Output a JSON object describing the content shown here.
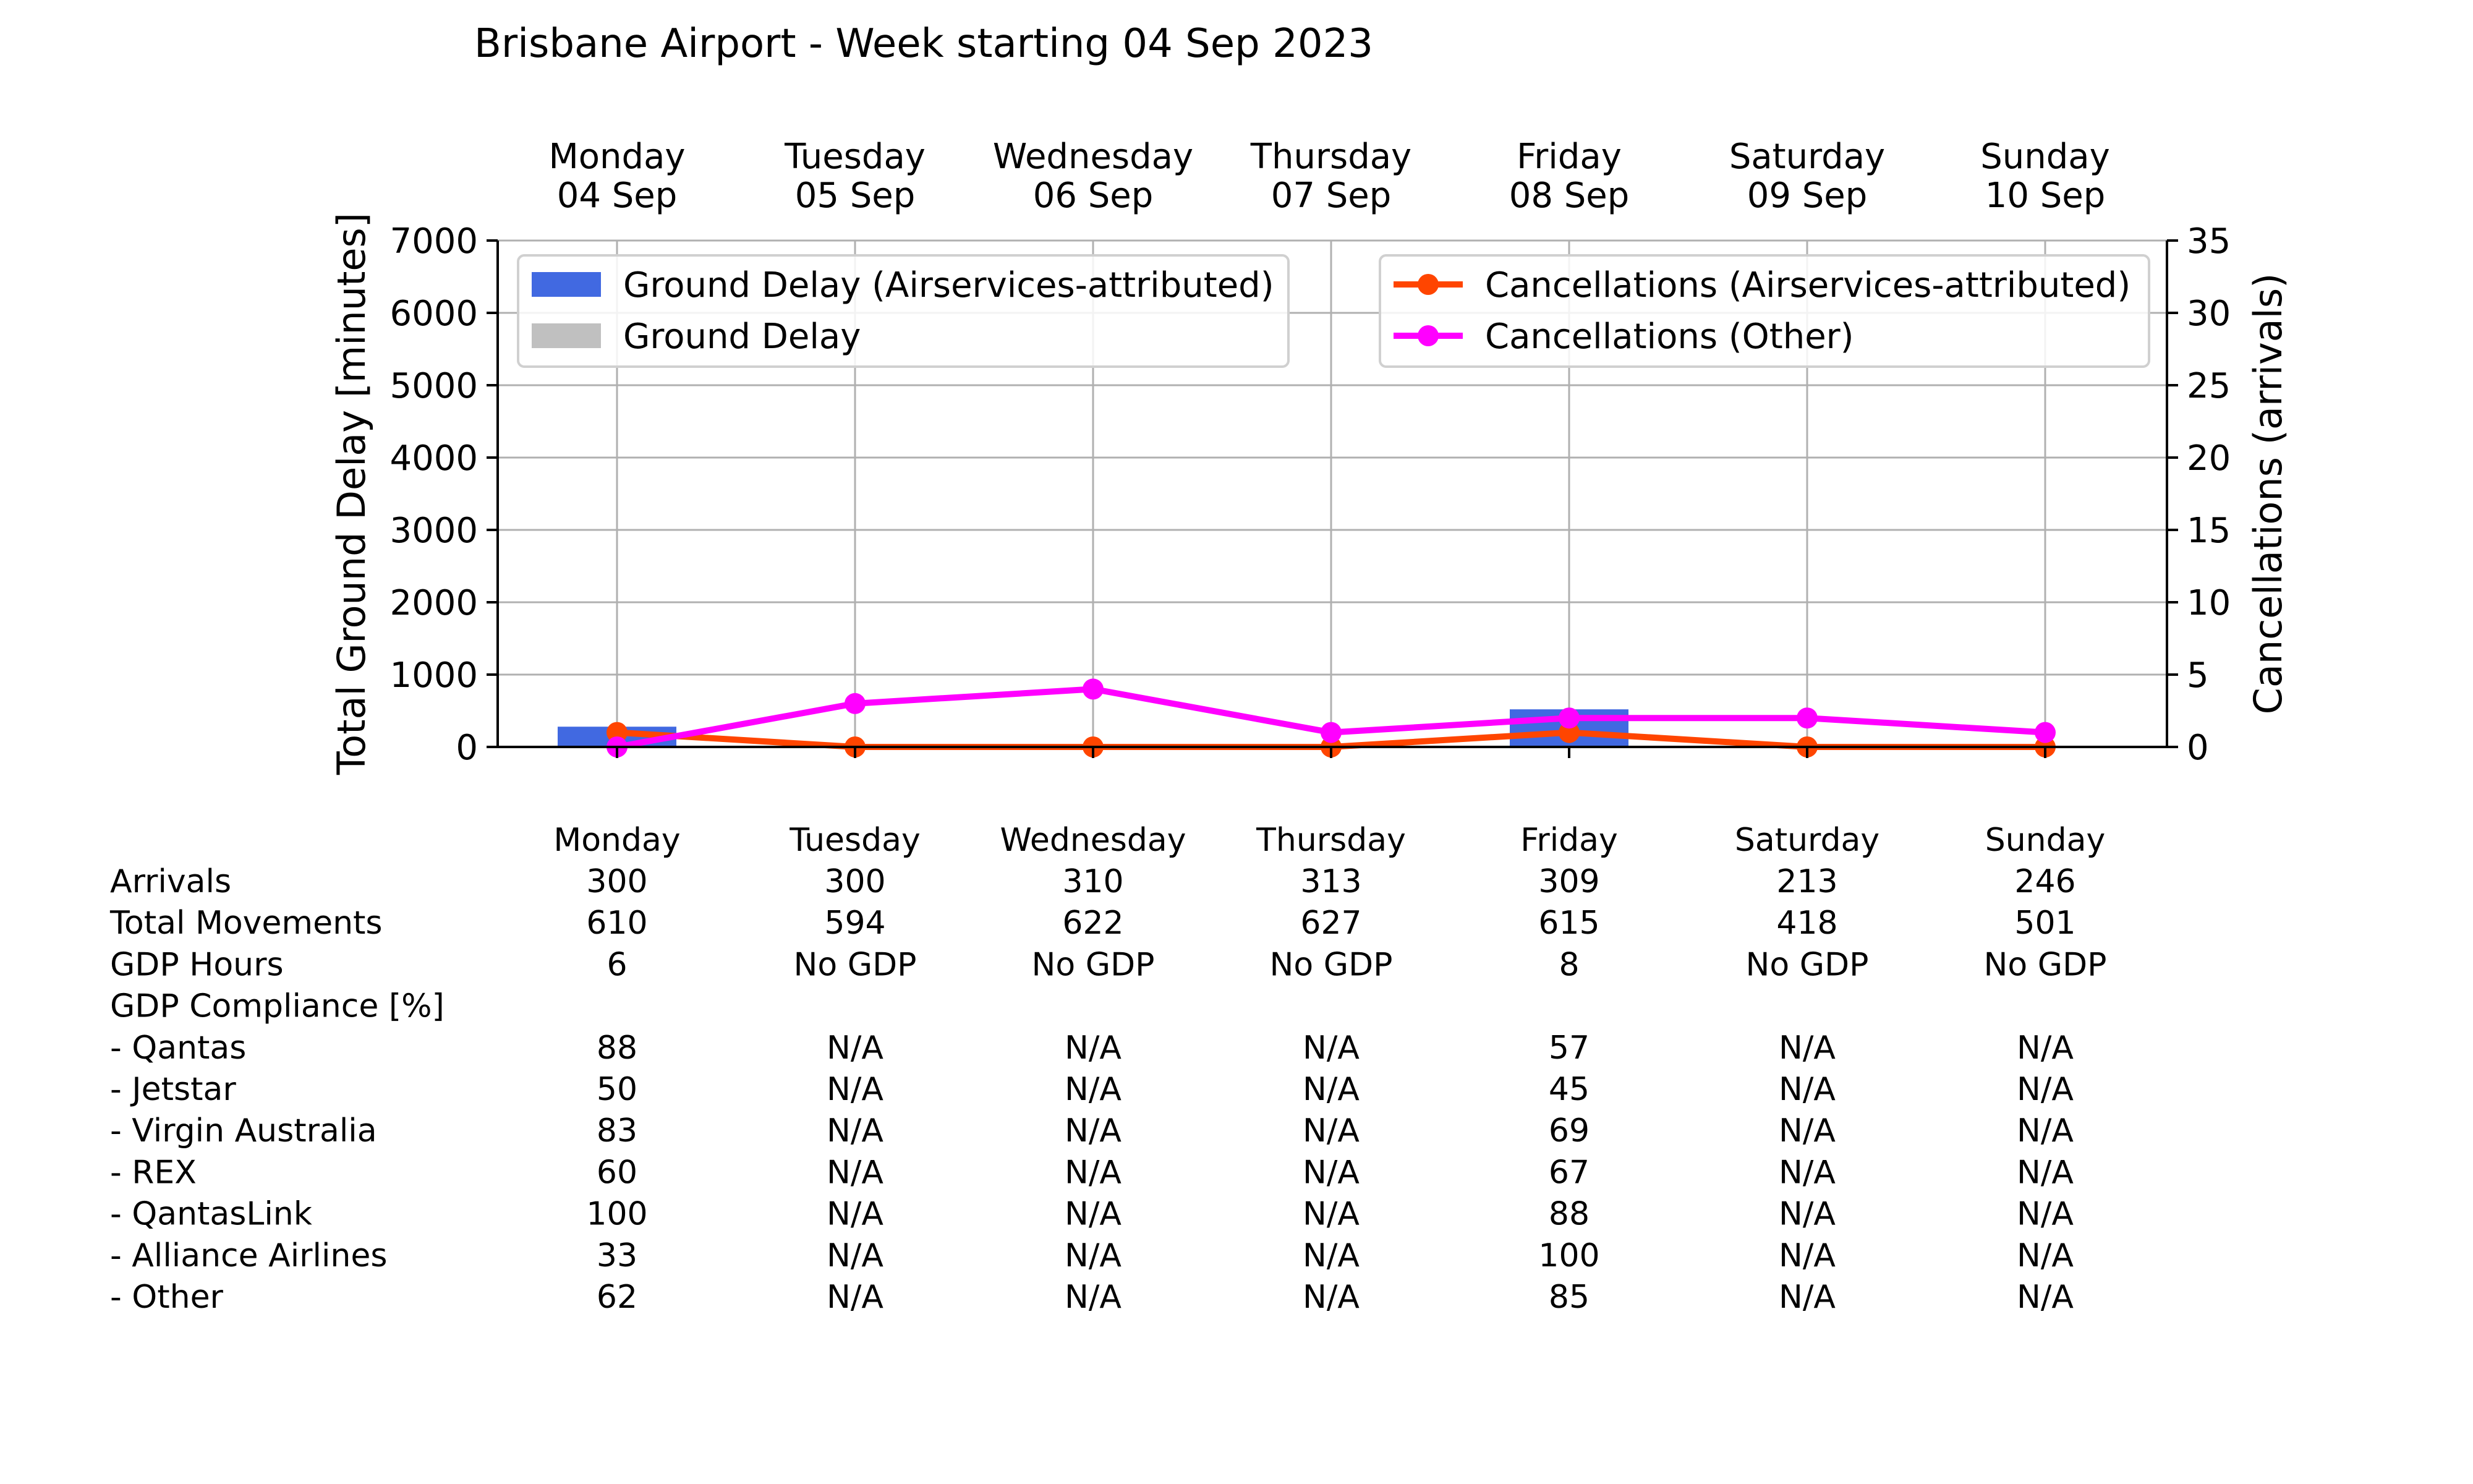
{
  "chart_data": {
    "type": "bar",
    "title": "Brisbane Airport - Week starting 04 Sep 2023",
    "days": [
      {
        "name": "Monday",
        "date": "04 Sep"
      },
      {
        "name": "Tuesday",
        "date": "05 Sep"
      },
      {
        "name": "Wednesday",
        "date": "06 Sep"
      },
      {
        "name": "Thursday",
        "date": "07 Sep"
      },
      {
        "name": "Friday",
        "date": "08 Sep"
      },
      {
        "name": "Saturday",
        "date": "09 Sep"
      },
      {
        "name": "Sunday",
        "date": "10 Sep"
      }
    ],
    "y_left": {
      "label": "Total Ground Delay [minutes]",
      "ylim": [
        0,
        7000
      ],
      "ticks": [
        0,
        1000,
        2000,
        3000,
        4000,
        5000,
        6000,
        7000
      ]
    },
    "y_right": {
      "label": "Cancellations (arrivals)",
      "ylim": [
        0,
        35
      ],
      "ticks": [
        0,
        5,
        10,
        15,
        20,
        25,
        30,
        35
      ]
    },
    "grid": true,
    "bars": [
      {
        "name": "Ground Delay (Airservices-attributed)",
        "color": "#4169e1",
        "axis": "left",
        "values": [
          280,
          0,
          0,
          0,
          520,
          0,
          0
        ]
      },
      {
        "name": "Ground Delay",
        "color": "#c0c0c0",
        "axis": "left",
        "values": [
          0,
          0,
          0,
          0,
          0,
          0,
          0
        ]
      }
    ],
    "lines": [
      {
        "name": "Cancellations (Airservices-attributed)",
        "color": "#ff4500",
        "axis": "right",
        "values": [
          1,
          0,
          0,
          0,
          1,
          0,
          0
        ]
      },
      {
        "name": "Cancellations (Other)",
        "color": "#ff00ff",
        "axis": "right",
        "values": [
          0,
          3,
          4,
          1,
          2,
          2,
          1
        ]
      }
    ],
    "legend_left_placement": "top-left",
    "legend_right_placement": "top-right",
    "table": {
      "headers": [
        "Monday",
        "Tuesday",
        "Wednesday",
        "Thursday",
        "Friday",
        "Saturday",
        "Sunday"
      ],
      "rows": [
        {
          "label": "Arrivals",
          "values": [
            "300",
            "300",
            "310",
            "313",
            "309",
            "213",
            "246"
          ]
        },
        {
          "label": "Total Movements",
          "values": [
            "610",
            "594",
            "622",
            "627",
            "615",
            "418",
            "501"
          ]
        },
        {
          "label": "GDP Hours",
          "values": [
            "6",
            "No GDP",
            "No GDP",
            "No GDP",
            "8",
            "No GDP",
            "No GDP"
          ]
        },
        {
          "label": "GDP Compliance [%]",
          "values": [
            "",
            "",
            "",
            "",
            "",
            "",
            ""
          ]
        },
        {
          "label": "  - Qantas",
          "values": [
            "88",
            "N/A",
            "N/A",
            "N/A",
            "57",
            "N/A",
            "N/A"
          ]
        },
        {
          "label": "  - Jetstar",
          "values": [
            "50",
            "N/A",
            "N/A",
            "N/A",
            "45",
            "N/A",
            "N/A"
          ]
        },
        {
          "label": "  - Virgin Australia",
          "values": [
            "83",
            "N/A",
            "N/A",
            "N/A",
            "69",
            "N/A",
            "N/A"
          ]
        },
        {
          "label": "  - REX",
          "values": [
            "60",
            "N/A",
            "N/A",
            "N/A",
            "67",
            "N/A",
            "N/A"
          ]
        },
        {
          "label": "  - QantasLink",
          "values": [
            "100",
            "N/A",
            "N/A",
            "N/A",
            "88",
            "N/A",
            "N/A"
          ]
        },
        {
          "label": "  - Alliance Airlines",
          "values": [
            "33",
            "N/A",
            "N/A",
            "N/A",
            "100",
            "N/A",
            "N/A"
          ]
        },
        {
          "label": "  - Other",
          "values": [
            "62",
            "N/A",
            "N/A",
            "N/A",
            "85",
            "N/A",
            "N/A"
          ]
        }
      ]
    }
  }
}
